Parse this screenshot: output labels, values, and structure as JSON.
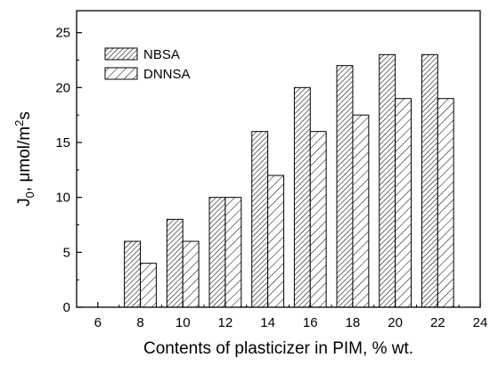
{
  "chart_data": {
    "type": "bar",
    "title": "",
    "xlabel": "Contents of plasticizer in PIM, % wt.",
    "ylabel": "J0, μmol/m2s",
    "ylabel_parts": {
      "main": "J",
      "sub": "0",
      "mid": ", μmol/m",
      "sup": "2",
      "end": "s"
    },
    "xlim": [
      5,
      24
    ],
    "ylim": [
      0,
      27
    ],
    "xticks": [
      6,
      8,
      10,
      12,
      14,
      16,
      18,
      20,
      22,
      24
    ],
    "yticks": [
      0,
      5,
      10,
      15,
      20,
      25
    ],
    "x": [
      8,
      10,
      12,
      14,
      16,
      18,
      20,
      22
    ],
    "series": [
      {
        "name": "NBSA",
        "values": [
          6,
          8,
          10,
          16,
          20,
          22,
          23,
          23
        ],
        "pattern": "dense-hatch"
      },
      {
        "name": "DNNSA",
        "values": [
          4,
          6,
          10,
          12,
          16,
          17.5,
          19,
          19
        ],
        "pattern": "sparse-hatch"
      }
    ],
    "grid": false,
    "legend_position": "top-left",
    "colors": {
      "bar_fill": "#ffffff",
      "bar_stroke": "#000000",
      "hatch": "#000000"
    }
  }
}
